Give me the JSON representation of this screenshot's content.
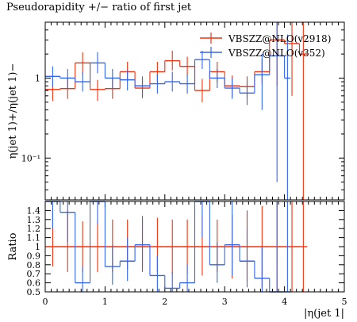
{
  "title": "Pseudorapidity +/− ratio of first jet",
  "chart_data": [
    {
      "type": "line",
      "panel": "main",
      "ylabel": "η(jet 1)+/η(jet 1)−",
      "y_scale": "log",
      "ylim": [
        0.03,
        5
      ],
      "yticks": [
        {
          "v": 1,
          "label": "1"
        },
        {
          "v": 0.1,
          "label": "10⁻¹"
        }
      ],
      "legend_position": "top-right",
      "series": [
        {
          "name": "VBSZZ@NLO(v2918)",
          "color": "#ee3311",
          "bins": [
            {
              "x0": 0.0,
              "x1": 0.25,
              "y": 0.72,
              "lo": 0.52,
              "hi": 1.0
            },
            {
              "x0": 0.25,
              "x1": 0.5,
              "y": 0.74,
              "lo": 0.55,
              "hi": 1.0
            },
            {
              "x0": 0.5,
              "x1": 0.75,
              "y": 1.55,
              "lo": 1.1,
              "hi": 2.1
            },
            {
              "x0": 0.75,
              "x1": 1.0,
              "y": 0.72,
              "lo": 0.52,
              "hi": 0.95
            },
            {
              "x0": 1.0,
              "x1": 1.25,
              "y": 0.74,
              "lo": 0.55,
              "hi": 1.0
            },
            {
              "x0": 1.25,
              "x1": 1.5,
              "y": 1.2,
              "lo": 0.9,
              "hi": 1.6
            },
            {
              "x0": 1.5,
              "x1": 1.75,
              "y": 0.75,
              "lo": 0.56,
              "hi": 1.0
            },
            {
              "x0": 1.75,
              "x1": 2.0,
              "y": 1.2,
              "lo": 0.9,
              "hi": 1.6
            },
            {
              "x0": 2.0,
              "x1": 2.25,
              "y": 1.65,
              "lo": 1.25,
              "hi": 2.2
            },
            {
              "x0": 2.25,
              "x1": 2.5,
              "y": 1.4,
              "lo": 1.05,
              "hi": 1.85
            },
            {
              "x0": 2.5,
              "x1": 2.75,
              "y": 0.7,
              "lo": 0.5,
              "hi": 0.98
            },
            {
              "x0": 2.75,
              "x1": 3.0,
              "y": 1.2,
              "lo": 0.88,
              "hi": 1.6
            },
            {
              "x0": 3.0,
              "x1": 3.25,
              "y": 0.8,
              "lo": 0.58,
              "hi": 1.08
            },
            {
              "x0": 3.25,
              "x1": 3.5,
              "y": 0.78,
              "lo": 0.56,
              "hi": 1.05
            },
            {
              "x0": 3.5,
              "x1": 3.75,
              "y": 1.2,
              "lo": 0.85,
              "hi": 1.7
            },
            {
              "x0": 3.75,
              "x1": 4.0,
              "y": 3.0,
              "lo": 0.8,
              "hi": 5.0
            },
            {
              "x0": 4.0,
              "x1": 4.25,
              "y": 2.7,
              "lo": 0.6,
              "hi": 5.0
            },
            {
              "x0": 4.25,
              "x1": 4.38,
              "y": 2.0,
              "lo": 0.03,
              "hi": 5.0
            }
          ]
        },
        {
          "name": "VBSZZ@NLO(v352)",
          "color": "#3366ee",
          "bins": [
            {
              "x0": 0.0,
              "x1": 0.25,
              "y": 1.05,
              "lo": 0.78,
              "hi": 1.4
            },
            {
              "x0": 0.25,
              "x1": 0.5,
              "y": 1.0,
              "lo": 0.75,
              "hi": 1.3
            },
            {
              "x0": 0.5,
              "x1": 0.75,
              "y": 0.9,
              "lo": 0.68,
              "hi": 1.2
            },
            {
              "x0": 0.75,
              "x1": 1.0,
              "y": 1.55,
              "lo": 1.15,
              "hi": 2.1
            },
            {
              "x0": 1.0,
              "x1": 1.25,
              "y": 1.0,
              "lo": 0.75,
              "hi": 1.3
            },
            {
              "x0": 1.25,
              "x1": 1.5,
              "y": 0.95,
              "lo": 0.7,
              "hi": 1.25
            },
            {
              "x0": 1.5,
              "x1": 1.75,
              "y": 0.8,
              "lo": 0.6,
              "hi": 1.05
            },
            {
              "x0": 1.75,
              "x1": 2.0,
              "y": 0.85,
              "lo": 0.64,
              "hi": 1.12
            },
            {
              "x0": 2.0,
              "x1": 2.25,
              "y": 0.9,
              "lo": 0.68,
              "hi": 1.2
            },
            {
              "x0": 2.25,
              "x1": 2.5,
              "y": 0.85,
              "lo": 0.64,
              "hi": 1.12
            },
            {
              "x0": 2.5,
              "x1": 2.75,
              "y": 1.7,
              "lo": 1.3,
              "hi": 2.2
            },
            {
              "x0": 2.75,
              "x1": 3.0,
              "y": 1.0,
              "lo": 0.75,
              "hi": 1.3
            },
            {
              "x0": 3.0,
              "x1": 3.25,
              "y": 0.75,
              "lo": 0.55,
              "hi": 1.0
            },
            {
              "x0": 3.25,
              "x1": 3.5,
              "y": 0.65,
              "lo": 0.46,
              "hi": 0.9
            },
            {
              "x0": 3.5,
              "x1": 3.75,
              "y": 1.1,
              "lo": 0.4,
              "hi": 2.0
            },
            {
              "x0": 3.75,
              "x1": 4.0,
              "y": 1.9,
              "lo": 0.05,
              "hi": 5.0
            },
            {
              "x0": 4.0,
              "x1": 4.1,
              "y": 1.0,
              "lo": 0.03,
              "hi": 3.5
            }
          ]
        }
      ]
    },
    {
      "type": "line",
      "panel": "ratio",
      "ylabel": "Ratio",
      "xlabel": "|η(jet 1|",
      "ylim": [
        0.5,
        1.5
      ],
      "xlim": [
        0,
        5
      ],
      "xticks": [
        0,
        1,
        2,
        3,
        4,
        5
      ],
      "yticks": [
        0.5,
        0.6,
        0.7,
        0.8,
        0.9,
        1,
        1.1,
        1.2,
        1.3,
        1.4
      ],
      "series": [
        {
          "name": "VBSZZ@NLO(v2918)",
          "color": "#ee3311",
          "bins": [
            {
              "x0": 0.0,
              "x1": 0.25,
              "y": 1.0,
              "lo": 0.78,
              "hi": 1.5
            },
            {
              "x0": 0.25,
              "x1": 0.5,
              "y": 1.0,
              "lo": 0.72,
              "hi": 1.4
            },
            {
              "x0": 0.5,
              "x1": 0.75,
              "y": 1.0,
              "lo": 0.72,
              "hi": 1.28
            },
            {
              "x0": 0.75,
              "x1": 1.0,
              "y": 1.0,
              "lo": 0.72,
              "hi": 1.28
            },
            {
              "x0": 1.0,
              "x1": 1.25,
              "y": 1.0,
              "lo": 0.72,
              "hi": 1.3
            },
            {
              "x0": 1.25,
              "x1": 1.5,
              "y": 1.0,
              "lo": 0.75,
              "hi": 1.3
            },
            {
              "x0": 1.5,
              "x1": 1.75,
              "y": 1.0,
              "lo": 0.72,
              "hi": 1.3
            },
            {
              "x0": 1.75,
              "x1": 2.0,
              "y": 1.0,
              "lo": 0.72,
              "hi": 1.32
            },
            {
              "x0": 2.0,
              "x1": 2.25,
              "y": 1.0,
              "lo": 0.7,
              "hi": 1.3
            },
            {
              "x0": 2.25,
              "x1": 2.5,
              "y": 1.0,
              "lo": 0.7,
              "hi": 1.3
            },
            {
              "x0": 2.5,
              "x1": 2.75,
              "y": 1.0,
              "lo": 0.68,
              "hi": 1.35
            },
            {
              "x0": 2.75,
              "x1": 3.0,
              "y": 1.0,
              "lo": 0.72,
              "hi": 1.3
            },
            {
              "x0": 3.0,
              "x1": 3.25,
              "y": 1.0,
              "lo": 0.65,
              "hi": 1.35
            },
            {
              "x0": 3.25,
              "x1": 3.5,
              "y": 1.0,
              "lo": 0.62,
              "hi": 1.4
            },
            {
              "x0": 3.5,
              "x1": 3.75,
              "y": 1.0,
              "lo": 0.55,
              "hi": 1.45
            },
            {
              "x0": 3.75,
              "x1": 4.0,
              "y": 1.0,
              "lo": 0.5,
              "hi": 1.5
            },
            {
              "x0": 4.0,
              "x1": 4.25,
              "y": 1.0,
              "lo": 0.5,
              "hi": 1.5
            },
            {
              "x0": 4.25,
              "x1": 4.38,
              "y": 1.0,
              "lo": 0.5,
              "hi": 1.5
            }
          ]
        },
        {
          "name": "VBSZZ@NLO(v352)",
          "color": "#3366ee",
          "bins": [
            {
              "x0": 0.0,
              "x1": 0.25,
              "y": 1.5,
              "lo": 1.2,
              "hi": 1.5
            },
            {
              "x0": 0.25,
              "x1": 0.5,
              "y": 1.38,
              "lo": 1.05,
              "hi": 1.5
            },
            {
              "x0": 0.5,
              "x1": 0.75,
              "y": 0.6,
              "lo": 0.45,
              "hi": 0.78
            },
            {
              "x0": 0.75,
              "x1": 1.0,
              "y": 1.5,
              "lo": 1.25,
              "hi": 1.5
            },
            {
              "x0": 1.0,
              "x1": 1.25,
              "y": 0.78,
              "lo": 0.58,
              "hi": 1.02
            },
            {
              "x0": 1.25,
              "x1": 1.5,
              "y": 0.84,
              "lo": 0.62,
              "hi": 1.1
            },
            {
              "x0": 1.5,
              "x1": 1.75,
              "y": 1.02,
              "lo": 0.76,
              "hi": 1.34
            },
            {
              "x0": 1.75,
              "x1": 2.0,
              "y": 0.68,
              "lo": 0.5,
              "hi": 0.9
            },
            {
              "x0": 2.0,
              "x1": 2.25,
              "y": 0.54,
              "lo": 0.45,
              "hi": 0.72
            },
            {
              "x0": 2.25,
              "x1": 2.5,
              "y": 0.6,
              "lo": 0.45,
              "hi": 0.8
            },
            {
              "x0": 2.5,
              "x1": 2.75,
              "y": 1.5,
              "lo": 1.1,
              "hi": 1.5
            },
            {
              "x0": 2.75,
              "x1": 3.0,
              "y": 0.8,
              "lo": 0.6,
              "hi": 1.05
            },
            {
              "x0": 3.0,
              "x1": 3.25,
              "y": 1.02,
              "lo": 0.68,
              "hi": 1.5
            },
            {
              "x0": 3.25,
              "x1": 3.5,
              "y": 0.84,
              "lo": 0.55,
              "hi": 1.2
            },
            {
              "x0": 3.5,
              "x1": 3.75,
              "y": 0.65,
              "lo": 0.45,
              "hi": 1.0
            },
            {
              "x0": 3.75,
              "x1": 4.0,
              "y": 0.5,
              "lo": 0.45,
              "hi": 1.5
            },
            {
              "x0": 4.0,
              "x1": 4.1,
              "y": 0.5,
              "lo": 0.45,
              "hi": 1.5
            }
          ]
        }
      ]
    }
  ]
}
